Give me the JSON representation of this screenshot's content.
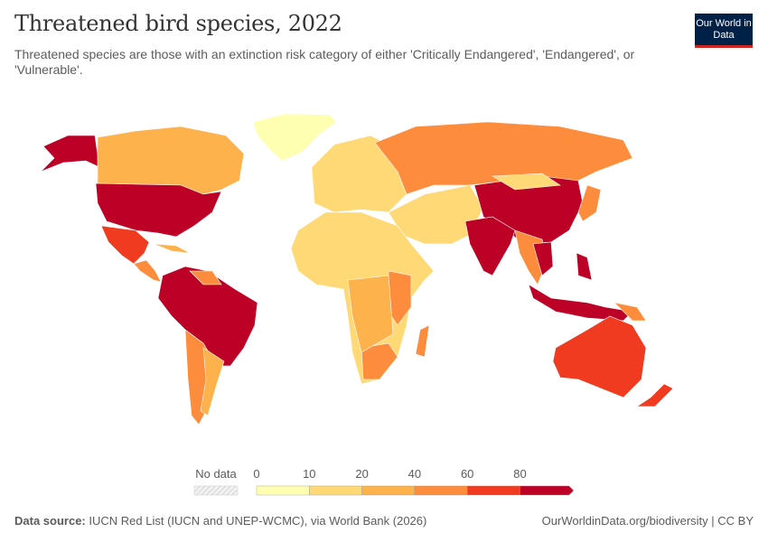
{
  "header": {
    "title": "Threatened bird species, 2022",
    "subtitle": "Threatened species are those with an extinction risk category of either 'Critically Endangered', 'Endangered', or 'Vulnerable'.",
    "logo": "Our World in Data"
  },
  "legend": {
    "no_data_label": "No data",
    "ticks": [
      "0",
      "10",
      "20",
      "40",
      "60",
      "80"
    ],
    "bins": [
      {
        "from": 0,
        "to": 10,
        "color": "#ffffb2"
      },
      {
        "from": 10,
        "to": 20,
        "color": "#fed976"
      },
      {
        "from": 20,
        "to": 40,
        "color": "#feb24c"
      },
      {
        "from": 40,
        "to": 60,
        "color": "#fd8d3c"
      },
      {
        "from": 60,
        "to": 80,
        "color": "#f03b20"
      },
      {
        "from": 80,
        "to": null,
        "color": "#bd0026"
      }
    ]
  },
  "footer": {
    "source_label": "Data source:",
    "source": "IUCN Red List (IUCN and UNEP-WCMC), via World Bank (2026)",
    "link": "OurWorldinData.org/biodiversity",
    "license": "| CC BY"
  }
}
